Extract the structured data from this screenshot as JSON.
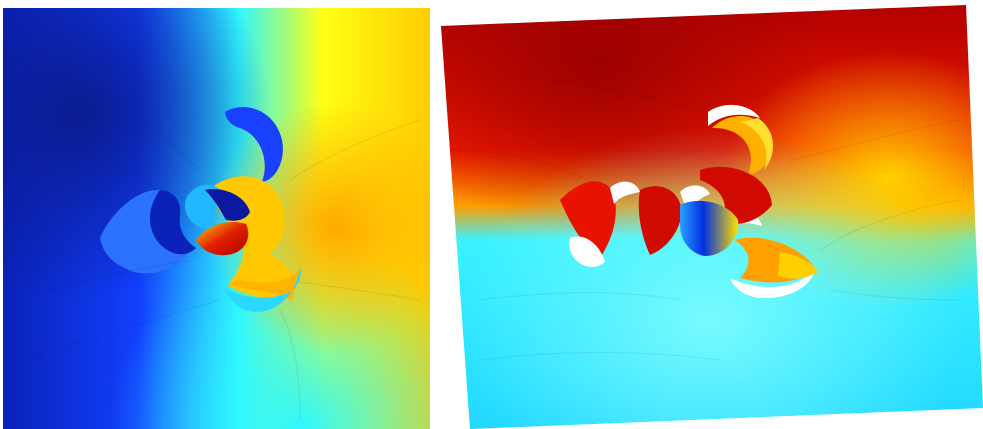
{
  "figure": {
    "panels": [
      {
        "id": "left",
        "description_colormap": "jet",
        "colors": {
          "deep_blue": "#0a22b8",
          "blue": "#1f57ff",
          "cyan": "#2ff7ff",
          "yellow": "#ffff14",
          "orange": "#ffb400",
          "red": "#d40000"
        }
      },
      {
        "id": "right",
        "description_colormap": "jet",
        "colors": {
          "dark_red": "#a80000",
          "red": "#ee1300",
          "orange": "#ff8a00",
          "yellow": "#ffe000",
          "cyan": "#22e8ff",
          "light_cyan": "#6ffcff",
          "blue": "#0040ff"
        }
      }
    ]
  }
}
